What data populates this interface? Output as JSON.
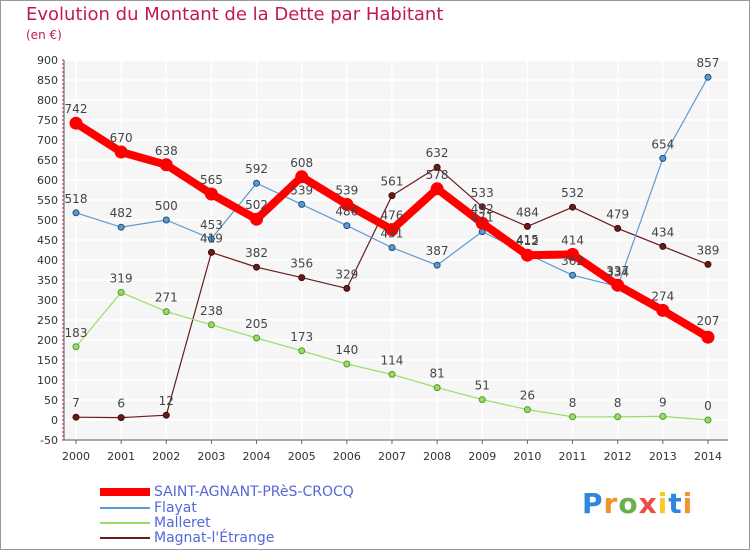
{
  "chart_data": {
    "type": "line",
    "title": "Evolution du Montant de la Dette par Habitant",
    "ylabel": "(en €)",
    "xlabel": "",
    "ylim": [
      -50,
      900
    ],
    "yticks": [
      -50,
      0,
      50,
      100,
      150,
      200,
      250,
      300,
      350,
      400,
      450,
      500,
      550,
      600,
      650,
      700,
      750,
      800,
      850,
      900
    ],
    "categories": [
      "2000",
      "2001",
      "2002",
      "2003",
      "2004",
      "2005",
      "2006",
      "2007",
      "2008",
      "2009",
      "2010",
      "2011",
      "2012",
      "2013",
      "2014"
    ],
    "series": [
      {
        "name": "SAINT-AGNANT-PRèS-CROCQ",
        "color": "#ff0000",
        "values": [
          742,
          670,
          638,
          565,
          502,
          608,
          539,
          476,
          578,
          492,
          412,
          414,
          337,
          274,
          207
        ]
      },
      {
        "name": "Flayat",
        "color": "#5b9bd5",
        "values": [
          518,
          482,
          500,
          453,
          592,
          539,
          486,
          431,
          387,
          471,
          415,
          362,
          334,
          654,
          857
        ]
      },
      {
        "name": "Malleret",
        "color": "#99dd66",
        "values": [
          183,
          319,
          271,
          238,
          205,
          173,
          140,
          114,
          81,
          51,
          26,
          8,
          8,
          9,
          0
        ]
      },
      {
        "name": "Magnat-l'Étrange",
        "color": "#6b1a1a",
        "values": [
          7,
          6,
          12,
          419,
          382,
          356,
          329,
          561,
          632,
          533,
          484,
          532,
          479,
          434,
          389
        ]
      }
    ]
  },
  "logo": {
    "text": "Proxiti",
    "letters": [
      "P",
      "r",
      "o",
      "x",
      "i",
      "t",
      "i"
    ],
    "colors": [
      "#2e86de",
      "#f0932b",
      "#6ab04c",
      "#eb4d4b",
      "#f9ca24",
      "#2e86de",
      "#f0932b"
    ]
  }
}
